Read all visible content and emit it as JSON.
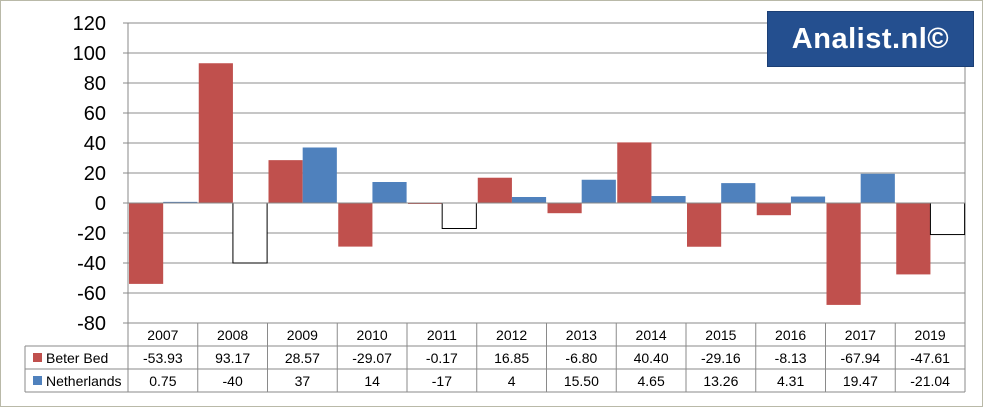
{
  "logo": {
    "text": "Analist.nl©",
    "background": "#244f8f"
  },
  "chart_data": {
    "type": "bar",
    "categories": [
      "2007",
      "2008",
      "2009",
      "2010",
      "2011",
      "2012",
      "2013",
      "2014",
      "2015",
      "2016",
      "2017",
      "2019"
    ],
    "series": [
      {
        "name": "Beter Bed",
        "color": "#c0504d",
        "values": [
          -53.93,
          93.17,
          28.57,
          -29.07,
          -0.17,
          16.85,
          -6.8,
          40.4,
          -29.16,
          -8.13,
          -67.94,
          -47.61
        ],
        "labels": [
          "-53.93",
          "93.17",
          "28.57",
          "-29.07",
          "-0.17",
          "16.85",
          "-6.80",
          "40.40",
          "-29.16",
          "-8.13",
          "-67.94",
          "-47.61"
        ]
      },
      {
        "name": "Netherlands",
        "color": "#4f81bd",
        "negative_style": "white fill with black outline",
        "values": [
          0.75,
          -40,
          37,
          14,
          -17,
          4,
          15.5,
          4.65,
          13.26,
          4.31,
          19.47,
          -21.04
        ],
        "labels": [
          "0.75",
          "-40",
          "37",
          "14",
          "-17",
          "4",
          "15.50",
          "4.65",
          "13.26",
          "4.31",
          "19.47",
          "-21.04"
        ]
      }
    ],
    "ylim": [
      -80,
      120
    ],
    "yticks": [
      120,
      100,
      80,
      60,
      40,
      20,
      0,
      -20,
      -40,
      -60,
      -80
    ],
    "grid": true,
    "data_table": true,
    "title": "",
    "xlabel": "",
    "ylabel": ""
  }
}
